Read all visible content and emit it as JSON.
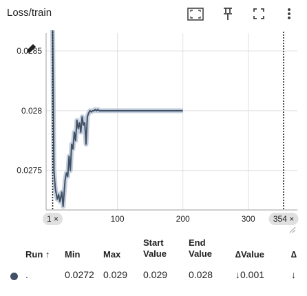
{
  "header": {
    "title": "Loss/train",
    "icons": [
      "fit-domain-icon",
      "pin-icon",
      "fullscreen-icon",
      "more-vert-icon"
    ]
  },
  "colors": {
    "series": "#425066",
    "smoothed_band": "#b7c4d6",
    "grid": "#e0e0e0",
    "axis": "#9e9e9e",
    "step_marker": "#212121",
    "chip_bg": "#e0e0e0"
  },
  "chart_data": {
    "type": "line",
    "title": "",
    "xlabel": "",
    "ylabel": "",
    "x_ticks": [
      100,
      200,
      300
    ],
    "y_ticks": [
      0.0275,
      0.028,
      0.0285
    ],
    "y_tick_labels": [
      "0.0275",
      "0.028",
      "0.0285"
    ],
    "xlim": [
      -9,
      375
    ],
    "ylim": [
      0.02717,
      0.02865
    ],
    "grid": true,
    "series": [
      {
        "x": [
          1,
          3,
          5,
          8,
          10,
          12,
          15,
          17,
          20,
          22,
          24,
          26,
          28,
          30,
          32,
          34,
          36,
          38,
          40,
          42,
          44,
          46,
          48,
          50,
          52,
          54,
          56,
          58,
          60,
          62,
          64,
          66,
          68,
          70,
          72,
          75,
          80,
          90,
          100,
          120,
          140,
          160,
          180,
          200
        ],
        "y": [
          0.029,
          0.0275,
          0.02735,
          0.02726,
          0.0273,
          0.02724,
          0.02732,
          0.0272,
          0.02742,
          0.02748,
          0.02745,
          0.02762,
          0.0275,
          0.02772,
          0.02768,
          0.02782,
          0.02775,
          0.02792,
          0.02785,
          0.0279,
          0.02782,
          0.02795,
          0.02788,
          0.0279,
          0.02772,
          0.02795,
          0.02798,
          0.028,
          0.02799,
          0.028,
          0.028,
          0.02801,
          0.028,
          0.02801,
          0.028,
          0.028,
          0.028,
          0.028,
          0.028,
          0.028,
          0.028,
          0.028,
          0.028,
          0.028
        ]
      }
    ],
    "step_markers": [
      {
        "x": 1,
        "label": "1 ×"
      },
      {
        "x": 354,
        "label": "354 ×"
      }
    ]
  },
  "table": {
    "columns": [
      {
        "key": "run",
        "label": "Run ↑"
      },
      {
        "key": "min",
        "label": "Min"
      },
      {
        "key": "max",
        "label": "Max"
      },
      {
        "key": "start",
        "label_line1": "Start",
        "label_line2": "Value"
      },
      {
        "key": "end",
        "label_line1": "End",
        "label_line2": "Value"
      },
      {
        "key": "delta",
        "label": "∆Value"
      },
      {
        "key": "delta2",
        "label": "∆"
      }
    ],
    "rows": [
      {
        "run": ".",
        "min": "0.0272",
        "max": "0.029",
        "start": "0.029",
        "end": "0.028",
        "delta": "↓0.001",
        "delta2": "↓"
      }
    ]
  }
}
